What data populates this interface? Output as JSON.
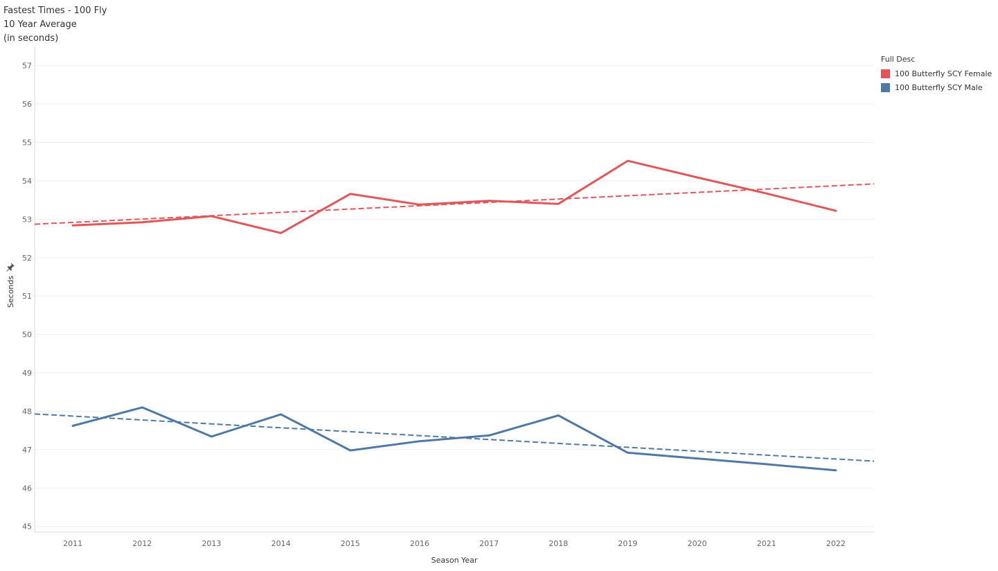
{
  "title_block": {
    "line1": "Fastest Times - 100 Fly",
    "line2": "10 Year Average",
    "line3": "(in seconds)"
  },
  "legend": {
    "title": "Full Desc",
    "items": [
      {
        "label": "100 Butterfly SCY Female",
        "color": "#e15759"
      },
      {
        "label": "100 Butterfly SCY Male",
        "color": "#4e79a7"
      }
    ]
  },
  "icons": {
    "axis_pin": "pin-icon"
  },
  "chart_data": {
    "type": "line",
    "xlabel": "Season Year",
    "ylabel": "Seconds",
    "x": [
      2011,
      2012,
      2013,
      2014,
      2015,
      2016,
      2017,
      2018,
      2019,
      2020,
      2021,
      2022
    ],
    "ylim": [
      45,
      57
    ],
    "xlim": [
      2010.45,
      2022.55
    ],
    "yticks": [
      45,
      46,
      47,
      48,
      49,
      50,
      51,
      52,
      53,
      54,
      55,
      56,
      57
    ],
    "grid": true,
    "legend_position": "top-right",
    "series": [
      {
        "name": "100 Butterfly SCY Female",
        "color": "#e15759",
        "values": [
          52.84,
          52.92,
          53.08,
          52.64,
          53.66,
          53.38,
          53.48,
          53.4,
          54.52,
          54.09,
          53.67,
          53.22
        ],
        "trend": {
          "x": [
            2010.45,
            2022.55
          ],
          "y": [
            52.87,
            53.92
          ]
        }
      },
      {
        "name": "100 Butterfly SCY Male",
        "color": "#4e79a7",
        "values": [
          47.62,
          48.1,
          47.34,
          47.92,
          46.98,
          47.22,
          47.37,
          47.89,
          46.92,
          46.77,
          46.62,
          46.46
        ],
        "trend": {
          "x": [
            2010.45,
            2022.55
          ],
          "y": [
            47.93,
            46.7
          ]
        }
      }
    ]
  }
}
